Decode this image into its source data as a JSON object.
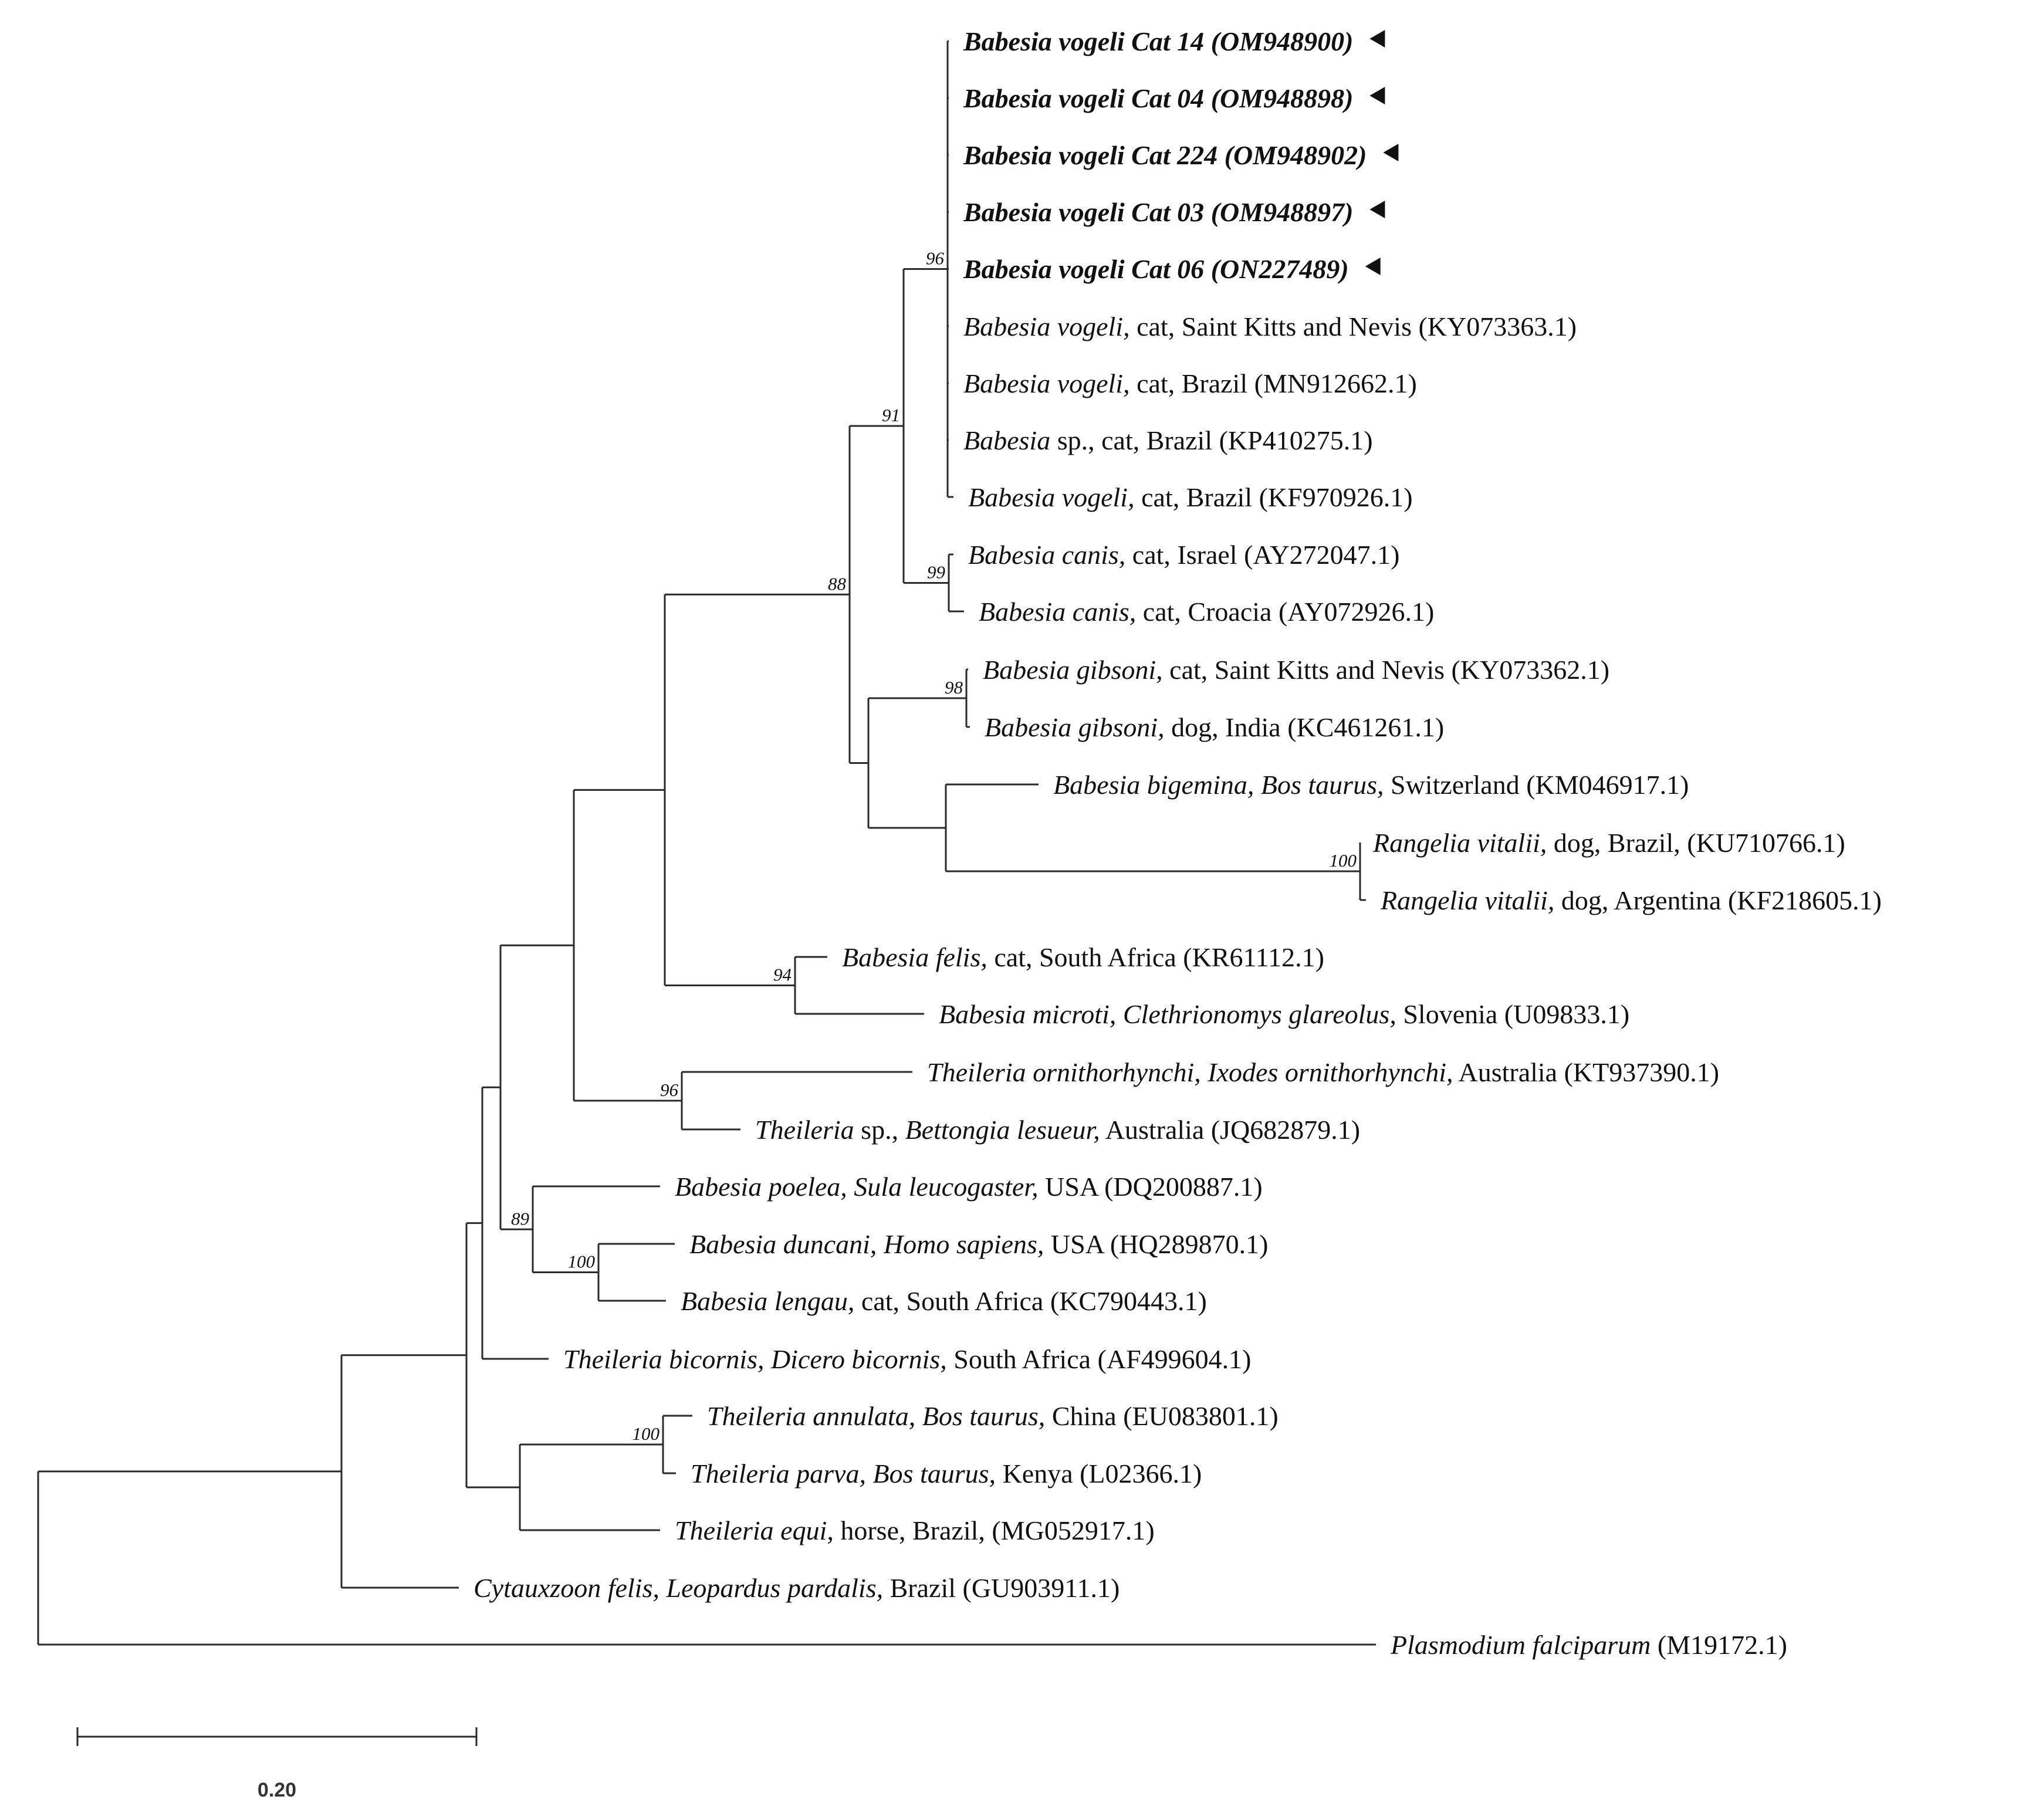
{
  "scale_bar": {
    "label": "0.20"
  },
  "taxa": [
    {
      "id": "t1",
      "parts": [
        {
          "t": "Babesia vogeli Cat 14 (OM948900)",
          "s": "b"
        }
      ],
      "highlight": true
    },
    {
      "id": "t2",
      "parts": [
        {
          "t": "Babesia vogeli Cat 04 (OM948898)",
          "s": "b"
        }
      ],
      "highlight": true
    },
    {
      "id": "t3",
      "parts": [
        {
          "t": "Babesia vogeli Cat 224 (OM948902)",
          "s": "b"
        }
      ],
      "highlight": true
    },
    {
      "id": "t4",
      "parts": [
        {
          "t": "Babesia vogeli Cat 03 (OM948897)",
          "s": "b"
        }
      ],
      "highlight": true
    },
    {
      "id": "t5",
      "parts": [
        {
          "t": "Babesia vogeli Cat 06 (ON227489)",
          "s": "b"
        }
      ],
      "highlight": true
    },
    {
      "id": "t6",
      "parts": [
        {
          "t": "Babesia vogeli,",
          "s": "i"
        },
        {
          "t": " cat, Saint Kitts and Nevis (KY073363.1)",
          "s": "n"
        }
      ]
    },
    {
      "id": "t7",
      "parts": [
        {
          "t": "Babesia vogeli,",
          "s": "i"
        },
        {
          "t": " cat, Brazil (MN912662.1)",
          "s": "n"
        }
      ]
    },
    {
      "id": "t8",
      "parts": [
        {
          "t": "Babesia",
          "s": "i"
        },
        {
          "t": " sp., cat, Brazil (KP410275.1)",
          "s": "n"
        }
      ]
    },
    {
      "id": "t9",
      "parts": [
        {
          "t": "Babesia vogeli,",
          "s": "i"
        },
        {
          "t": " cat, Brazil (KF970926.1)",
          "s": "n"
        }
      ]
    },
    {
      "id": "t10",
      "parts": [
        {
          "t": "Babesia canis,",
          "s": "i"
        },
        {
          "t": " cat, Israel (AY272047.1)",
          "s": "n"
        }
      ]
    },
    {
      "id": "t11",
      "parts": [
        {
          "t": "Babesia canis,",
          "s": "i"
        },
        {
          "t": " cat, Croacia (AY072926.1)",
          "s": "n"
        }
      ]
    },
    {
      "id": "t12",
      "parts": [
        {
          "t": "Babesia gibsoni,",
          "s": "i"
        },
        {
          "t": " cat, Saint Kitts and Nevis (KY073362.1)",
          "s": "n"
        }
      ]
    },
    {
      "id": "t13",
      "parts": [
        {
          "t": "Babesia gibsoni,",
          "s": "i"
        },
        {
          "t": " dog, India (KC461261.1)",
          "s": "n"
        }
      ]
    },
    {
      "id": "t14",
      "parts": [
        {
          "t": "Babesia bigemina, Bos taurus,",
          "s": "i"
        },
        {
          "t": " Switzerland (KM046917.1)",
          "s": "n"
        }
      ]
    },
    {
      "id": "t15",
      "parts": [
        {
          "t": "Rangelia vitalii,",
          "s": "i"
        },
        {
          "t": " dog, Brazil, (KU710766.1)",
          "s": "n"
        }
      ]
    },
    {
      "id": "t16",
      "parts": [
        {
          "t": "Rangelia vitalii,",
          "s": "i"
        },
        {
          "t": " dog, Argentina (KF218605.1)",
          "s": "n"
        }
      ]
    },
    {
      "id": "t17",
      "parts": [
        {
          "t": "Babesia felis,",
          "s": "i"
        },
        {
          "t": " cat, South Africa (KR61112.1)",
          "s": "n"
        }
      ]
    },
    {
      "id": "t18",
      "parts": [
        {
          "t": "Babesia microti, Clethrionomys glareolus,",
          "s": "i"
        },
        {
          "t": " Slovenia (U09833.1)",
          "s": "n"
        }
      ]
    },
    {
      "id": "t19",
      "parts": [
        {
          "t": "Theileria ornithorhynchi, Ixodes ornithorhynchi,",
          "s": "i"
        },
        {
          "t": " Australia (KT937390.1)",
          "s": "n"
        }
      ]
    },
    {
      "id": "t20",
      "parts": [
        {
          "t": "Theileria",
          "s": "i"
        },
        {
          "t": " sp., ",
          "s": "n"
        },
        {
          "t": "Bettongia lesueur,",
          "s": "i"
        },
        {
          "t": " Australia (JQ682879.1)",
          "s": "n"
        }
      ]
    },
    {
      "id": "t21",
      "parts": [
        {
          "t": "Babesia poelea, Sula leucogaster,",
          "s": "i"
        },
        {
          "t": " USA (DQ200887.1)",
          "s": "n"
        }
      ]
    },
    {
      "id": "t22",
      "parts": [
        {
          "t": "Babesia duncani, Homo sapiens,",
          "s": "i"
        },
        {
          "t": " USA (HQ289870.1)",
          "s": "n"
        }
      ]
    },
    {
      "id": "t23",
      "parts": [
        {
          "t": "Babesia lengau,",
          "s": "i"
        },
        {
          "t": " cat, South Africa (KC790443.1)",
          "s": "n"
        }
      ]
    },
    {
      "id": "t24",
      "parts": [
        {
          "t": "Theileria bicornis, Dicero bicornis,",
          "s": "i"
        },
        {
          "t": " South Africa (AF499604.1)",
          "s": "n"
        }
      ]
    },
    {
      "id": "t25",
      "parts": [
        {
          "t": "Theileria annulata, Bos taurus,",
          "s": "i"
        },
        {
          "t": " China (EU083801.1)",
          "s": "n"
        }
      ]
    },
    {
      "id": "t26",
      "parts": [
        {
          "t": "Theileria parva, Bos taurus,",
          "s": "i"
        },
        {
          "t": " Kenya (L02366.1)",
          "s": "n"
        }
      ]
    },
    {
      "id": "t27",
      "parts": [
        {
          "t": "Theileria equi,",
          "s": "i"
        },
        {
          "t": " horse, Brazil, (MG052917.1)",
          "s": "n"
        }
      ]
    },
    {
      "id": "t28",
      "parts": [
        {
          "t": "Cytauxzoon felis, Leopardus pardalis,",
          "s": "i"
        },
        {
          "t": " Brazil (GU903911.1)",
          "s": "n"
        }
      ]
    },
    {
      "id": "t29",
      "parts": [
        {
          "t": "Plasmodium falciparum",
          "s": "i"
        },
        {
          "t": " (M19172.1)",
          "s": "n"
        }
      ]
    }
  ],
  "bootstrap": {
    "b_vogeli": "96",
    "b_vogcan": "91",
    "b_canis": "99",
    "b_big": "88",
    "b_gib": "98",
    "b_rang": "100",
    "b_felis": "94",
    "b_theo": "96",
    "b_89": "89",
    "b_dunc": "100",
    "b_ann": "100"
  }
}
